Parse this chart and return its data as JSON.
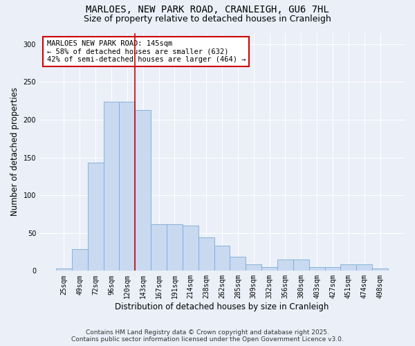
{
  "title_line1": "MARLOES, NEW PARK ROAD, CRANLEIGH, GU6 7HL",
  "title_line2": "Size of property relative to detached houses in Cranleigh",
  "xlabel": "Distribution of detached houses by size in Cranleigh",
  "ylabel": "Number of detached properties",
  "bins": [
    "25sqm",
    "49sqm",
    "72sqm",
    "96sqm",
    "120sqm",
    "143sqm",
    "167sqm",
    "191sqm",
    "214sqm",
    "238sqm",
    "262sqm",
    "285sqm",
    "309sqm",
    "332sqm",
    "356sqm",
    "380sqm",
    "403sqm",
    "427sqm",
    "451sqm",
    "474sqm",
    "498sqm"
  ],
  "values": [
    3,
    29,
    143,
    224,
    224,
    213,
    62,
    62,
    60,
    44,
    33,
    19,
    9,
    5,
    15,
    15,
    5,
    5,
    9,
    9,
    3
  ],
  "bar_color": "#c9d9f0",
  "bar_edge_color": "#7bacd4",
  "vline_color": "#cc0000",
  "annotation_box_text": "MARLOES NEW PARK ROAD: 145sqm\n← 58% of detached houses are smaller (632)\n42% of semi-detached houses are larger (464) →",
  "annotation_box_edge_color": "#cc0000",
  "annotation_box_fill": "white",
  "ylim": [
    0,
    315
  ],
  "yticks": [
    0,
    50,
    100,
    150,
    200,
    250,
    300
  ],
  "footer_line1": "Contains HM Land Registry data © Crown copyright and database right 2025.",
  "footer_line2": "Contains public sector information licensed under the Open Government Licence v3.0.",
  "bg_color": "#eaeff8",
  "plot_bg_color": "#eaeff8",
  "title_fontsize": 10,
  "subtitle_fontsize": 9,
  "axis_label_fontsize": 8.5,
  "tick_fontsize": 7,
  "footer_fontsize": 6.5,
  "ann_fontsize": 7.5
}
